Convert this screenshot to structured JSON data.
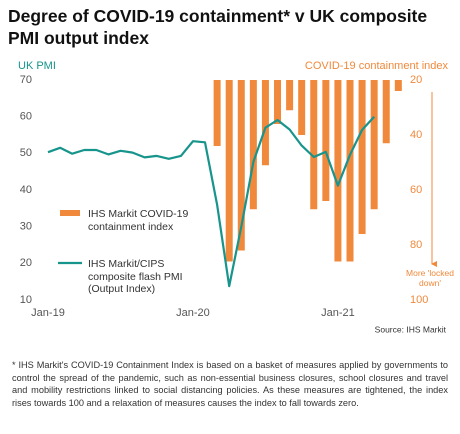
{
  "chart_data": {
    "type": "combo",
    "title": "Degree of COVID-19 containment* v UK composite PMI output index",
    "y_label": "UK PMI",
    "y2_label": "COVID-19 containment index",
    "annotation": "More 'locked down'",
    "source": "Source: IHS Markit",
    "footnote": "* IHS Markit's COVID-19 Containment Index is based on a basket of measures applied by governments to control the spread of the pandemic, such as non-essential business closures, school closures and travel and mobility restrictions linked to social distancing policies. As these measures are tightened, the index rises towards 100 and a relaxation of measures causes the index to fall towards zero.",
    "categories": [
      "Jan-19",
      null,
      null,
      null,
      null,
      null,
      null,
      null,
      null,
      null,
      null,
      null,
      "Jan-20",
      null,
      null,
      null,
      null,
      null,
      null,
      null,
      null,
      null,
      null,
      null,
      "Jan-21",
      null,
      null,
      null,
      null,
      null
    ],
    "ylim": [
      10,
      70
    ],
    "yticks": [
      10,
      20,
      30,
      40,
      50,
      60,
      70
    ],
    "y2lim": [
      100,
      20
    ],
    "y2ticks": [
      20,
      40,
      60,
      80,
      100
    ],
    "series": [
      {
        "name": "IHS Markit COVID-19 containment index",
        "type": "bar",
        "axis": "y2",
        "color": "#f0893c",
        "values": [
          null,
          null,
          null,
          null,
          null,
          null,
          null,
          null,
          null,
          null,
          null,
          null,
          null,
          null,
          44,
          86,
          82,
          67,
          51,
          36,
          31,
          40,
          67,
          64,
          86,
          86,
          76,
          67,
          43,
          24
        ]
      },
      {
        "name": "IHS Markit/CIPS composite flash PMI (Output Index)",
        "type": "line",
        "color": "#17948c",
        "values": [
          50.3,
          51.5,
          49.9,
          50.9,
          50.9,
          49.7,
          50.7,
          50.2,
          48.9,
          49.3,
          48.5,
          49.3,
          53.3,
          53.0,
          36.0,
          13.8,
          30.0,
          47.7,
          57.0,
          59.1,
          56.5,
          52.1,
          49.0,
          50.4,
          41.2,
          49.6,
          56.4,
          60.0,
          null,
          null
        ]
      }
    ]
  }
}
